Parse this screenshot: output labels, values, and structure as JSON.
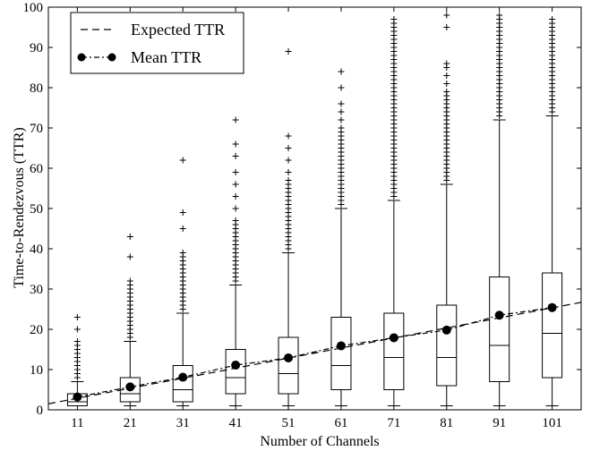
{
  "chart_data": {
    "type": "box",
    "title": "",
    "xlabel": "Number of Channels",
    "ylabel": "Time-to-Rendezvous (TTR)",
    "ylim": [
      0,
      100
    ],
    "yticks": [
      0,
      10,
      20,
      30,
      40,
      50,
      60,
      70,
      80,
      90,
      100
    ],
    "xlim": [
      5.5,
      106.5
    ],
    "grid": false,
    "legend": {
      "placement": "top-left",
      "entries": [
        {
          "label": "Expected TTR",
          "style": "dashed line"
        },
        {
          "label": "Mean TTR",
          "style": "dash-dot line with circle markers"
        }
      ]
    },
    "categories": [
      "11",
      "21",
      "31",
      "41",
      "51",
      "61",
      "71",
      "81",
      "91",
      "101"
    ],
    "x": [
      11,
      21,
      31,
      41,
      51,
      61,
      71,
      81,
      91,
      101
    ],
    "boxes": [
      {
        "whisker_low": 1,
        "q1": 1,
        "median": 2,
        "q3": 4,
        "whisker_high": 7
      },
      {
        "whisker_low": 1,
        "q1": 2,
        "median": 4,
        "q3": 8,
        "whisker_high": 17
      },
      {
        "whisker_low": 1,
        "q1": 2,
        "median": 5,
        "q3": 11,
        "whisker_high": 24
      },
      {
        "whisker_low": 1,
        "q1": 4,
        "median": 8,
        "q3": 15,
        "whisker_high": 31
      },
      {
        "whisker_low": 1,
        "q1": 4,
        "median": 9,
        "q3": 18,
        "whisker_high": 39
      },
      {
        "whisker_low": 1,
        "q1": 5,
        "median": 11,
        "q3": 23,
        "whisker_high": 50
      },
      {
        "whisker_low": 1,
        "q1": 5,
        "median": 13,
        "q3": 24,
        "whisker_high": 52
      },
      {
        "whisker_low": 1,
        "q1": 6,
        "median": 13,
        "q3": 26,
        "whisker_high": 56
      },
      {
        "whisker_low": 1,
        "q1": 7,
        "median": 16,
        "q3": 33,
        "whisker_high": 72
      },
      {
        "whisker_low": 1,
        "q1": 8,
        "median": 19,
        "q3": 34,
        "whisker_high": 73
      }
    ],
    "outliers": [
      {
        "dense_from": 8,
        "dense_to": 17,
        "extra": [
          20,
          23
        ]
      },
      {
        "dense_from": 18,
        "dense_to": 32,
        "extra": [
          38,
          43
        ]
      },
      {
        "dense_from": 25,
        "dense_to": 39,
        "extra": [
          45,
          49,
          62
        ]
      },
      {
        "dense_from": 32,
        "dense_to": 47,
        "extra": [
          50,
          53,
          56,
          59,
          63,
          66,
          72
        ]
      },
      {
        "dense_from": 40,
        "dense_to": 57,
        "extra": [
          59,
          62,
          65,
          68,
          89
        ]
      },
      {
        "dense_from": 51,
        "dense_to": 70,
        "extra": [
          72,
          74,
          76,
          80,
          84
        ]
      },
      {
        "dense_from": 53,
        "dense_to": 97,
        "extra": []
      },
      {
        "dense_from": 57,
        "dense_to": 79,
        "extra": [
          81,
          83,
          85,
          86,
          95,
          98
        ]
      },
      {
        "dense_from": 73,
        "dense_to": 98,
        "extra": []
      },
      {
        "dense_from": 74,
        "dense_to": 97,
        "extra": []
      }
    ],
    "series": [
      {
        "name": "Mean TTR",
        "values": [
          3.2,
          5.7,
          8.1,
          11.1,
          12.9,
          15.9,
          17.9,
          19.8,
          23.5,
          25.4
        ]
      },
      {
        "name": "Expected TTR",
        "line": {
          "x0": 5.5,
          "y0": 1.5,
          "x1": 106.5,
          "y1": 26.7
        }
      }
    ],
    "colors": {
      "line": "#000000",
      "background": "#ffffff"
    }
  }
}
